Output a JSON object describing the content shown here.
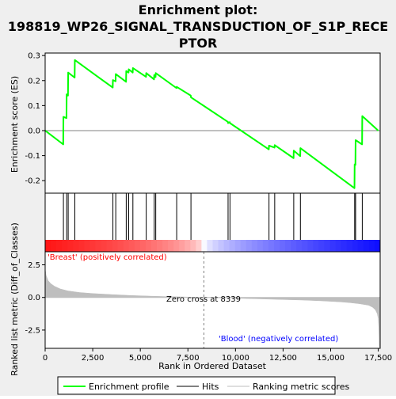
{
  "title_line1": "Enrichment plot:",
  "title_line2": "198819_WP26_SIGNAL_TRANSDUCTION_OF_S1P_RECE",
  "title_line3": "PTOR",
  "colors": {
    "es_line": "#00ff00",
    "hits": "#000000",
    "metric_fill": "#bebebe",
    "zero_line": "#808080",
    "positive": "#ff0000",
    "negative": "#0000ff",
    "background": "#efefef"
  },
  "chart_data": [
    {
      "panel": "enrichment-profile",
      "type": "line",
      "ylabel": "Enrichment score (ES)",
      "xlim": [
        0,
        17600
      ],
      "ylim": [
        -0.25,
        0.31
      ],
      "y_ticks": [
        "-0.2",
        "-0.1",
        "0.0",
        "0.1",
        "0.2",
        "0.3"
      ],
      "grid": false,
      "series": [
        {
          "name": "Enrichment profile",
          "x": [
            0,
            950,
            960,
            1120,
            1130,
            1200,
            1210,
            1550,
            1560,
            3550,
            3560,
            3700,
            3710,
            4250,
            4260,
            4380,
            4390,
            4600,
            4610,
            5300,
            5310,
            5720,
            5730,
            5800,
            5810,
            6900,
            6910,
            7650,
            7660,
            9600,
            9610,
            9700,
            9710,
            11750,
            11760,
            12050,
            12060,
            13050,
            13060,
            13400,
            13410,
            16250,
            16260,
            16300,
            16310,
            16650,
            16660,
            17500
          ],
          "y": [
            0.0,
            -0.055,
            0.055,
            0.05,
            0.145,
            0.14,
            0.232,
            0.212,
            0.282,
            0.172,
            0.202,
            0.197,
            0.226,
            0.195,
            0.238,
            0.232,
            0.245,
            0.232,
            0.25,
            0.215,
            0.23,
            0.205,
            0.222,
            0.214,
            0.23,
            0.17,
            0.175,
            0.14,
            0.133,
            0.035,
            0.03,
            0.034,
            0.03,
            -0.075,
            -0.06,
            -0.068,
            -0.058,
            -0.11,
            -0.08,
            -0.102,
            -0.07,
            -0.23,
            -0.135,
            -0.137,
            -0.038,
            -0.055,
            0.058,
            0.0
          ]
        }
      ]
    },
    {
      "panel": "hits",
      "type": "scatter",
      "series": [
        {
          "name": "Hits",
          "x": [
            960,
            1130,
            1210,
            1560,
            3560,
            3710,
            4260,
            4390,
            4610,
            5310,
            5730,
            5810,
            6910,
            7660,
            9610,
            9710,
            11760,
            12060,
            13060,
            13410,
            16260,
            16310,
            16660
          ]
        }
      ]
    },
    {
      "panel": "ranked-metric",
      "type": "area",
      "xlabel": "Rank in Ordered Dataset",
      "ylabel": "Ranked list metric (Diff_of_Classes)",
      "xlim": [
        0,
        17600
      ],
      "ylim": [
        -3.9,
        3.5
      ],
      "x_ticks": [
        "0",
        "2,500",
        "5,000",
        "7,500",
        "10,000",
        "12,500",
        "15,000",
        "17,500"
      ],
      "y_ticks": [
        "-2.5",
        "0.0",
        "2.5"
      ],
      "series": [
        {
          "name": "Ranking metric scores",
          "x": [
            0,
            50,
            150,
            300,
            500,
            800,
            1200,
            1800,
            2500,
            3500,
            4500,
            5500,
            6500,
            7500,
            8339,
            9500,
            10500,
            11500,
            12500,
            13500,
            14500,
            15500,
            16000,
            16500,
            17000,
            17200,
            17350,
            17450,
            17500,
            17530,
            17560
          ],
          "y": [
            2.2,
            1.7,
            1.3,
            1.05,
            0.85,
            0.65,
            0.5,
            0.38,
            0.3,
            0.22,
            0.15,
            0.1,
            0.06,
            0.03,
            0.0,
            -0.04,
            -0.08,
            -0.12,
            -0.16,
            -0.2,
            -0.26,
            -0.34,
            -0.4,
            -0.48,
            -0.6,
            -0.75,
            -0.95,
            -1.25,
            -1.6,
            -2.3,
            -3.8
          ]
        }
      ],
      "annotations": {
        "positive_label": "'Breast' (positively correlated)",
        "negative_label": "'Blood' (negatively correlated)",
        "zero_cross_label": "Zero cross at 8339",
        "zero_cross_x": 8339
      }
    }
  ],
  "legend": {
    "items": [
      {
        "label": "Enrichment profile",
        "color": "#00ff00"
      },
      {
        "label": "Hits",
        "color": "#000000"
      },
      {
        "label": "Ranking metric scores",
        "color": "#bebebe"
      }
    ]
  }
}
